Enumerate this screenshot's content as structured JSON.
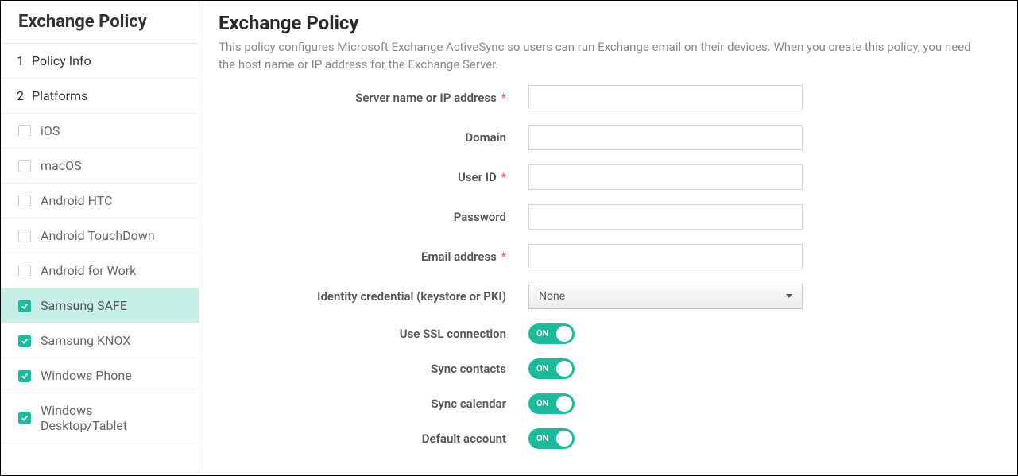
{
  "colors": {
    "accent": "#1abc9c",
    "active_bg": "#c6efe8",
    "border": "#e5e5e5",
    "text": "#333333",
    "text_muted": "#888888",
    "required": "#e05a5a"
  },
  "sidebar": {
    "title": "Exchange Policy",
    "sections": [
      {
        "num": "1",
        "label": "Policy Info"
      },
      {
        "num": "2",
        "label": "Platforms"
      }
    ],
    "platforms": [
      {
        "label": "iOS",
        "checked": false,
        "active": false
      },
      {
        "label": "macOS",
        "checked": false,
        "active": false
      },
      {
        "label": "Android HTC",
        "checked": false,
        "active": false
      },
      {
        "label": "Android TouchDown",
        "checked": false,
        "active": false
      },
      {
        "label": "Android for Work",
        "checked": false,
        "active": false
      },
      {
        "label": "Samsung SAFE",
        "checked": true,
        "active": true
      },
      {
        "label": "Samsung KNOX",
        "checked": true,
        "active": false
      },
      {
        "label": "Windows Phone",
        "checked": true,
        "active": false
      },
      {
        "label": "Windows Desktop/Tablet",
        "checked": true,
        "active": false
      }
    ]
  },
  "main": {
    "title": "Exchange Policy",
    "description": "This policy configures Microsoft Exchange ActiveSync so users can run Exchange email on their devices. When you create this policy, you need the host name or IP address for the Exchange Server.",
    "fields": {
      "server": {
        "label": "Server name or IP address",
        "required": true,
        "value": ""
      },
      "domain": {
        "label": "Domain",
        "required": false,
        "value": ""
      },
      "user_id": {
        "label": "User ID",
        "required": true,
        "value": ""
      },
      "password": {
        "label": "Password",
        "required": false,
        "value": ""
      },
      "email": {
        "label": "Email address",
        "required": true,
        "value": ""
      },
      "identity": {
        "label": "Identity credential (keystore or PKI)",
        "selected": "None"
      },
      "use_ssl": {
        "label": "Use SSL connection",
        "state": "ON"
      },
      "sync_contacts": {
        "label": "Sync contacts",
        "state": "ON"
      },
      "sync_calendar": {
        "label": "Sync calendar",
        "state": "ON"
      },
      "default_account": {
        "label": "Default account",
        "state": "ON"
      }
    },
    "required_marker": "*"
  }
}
